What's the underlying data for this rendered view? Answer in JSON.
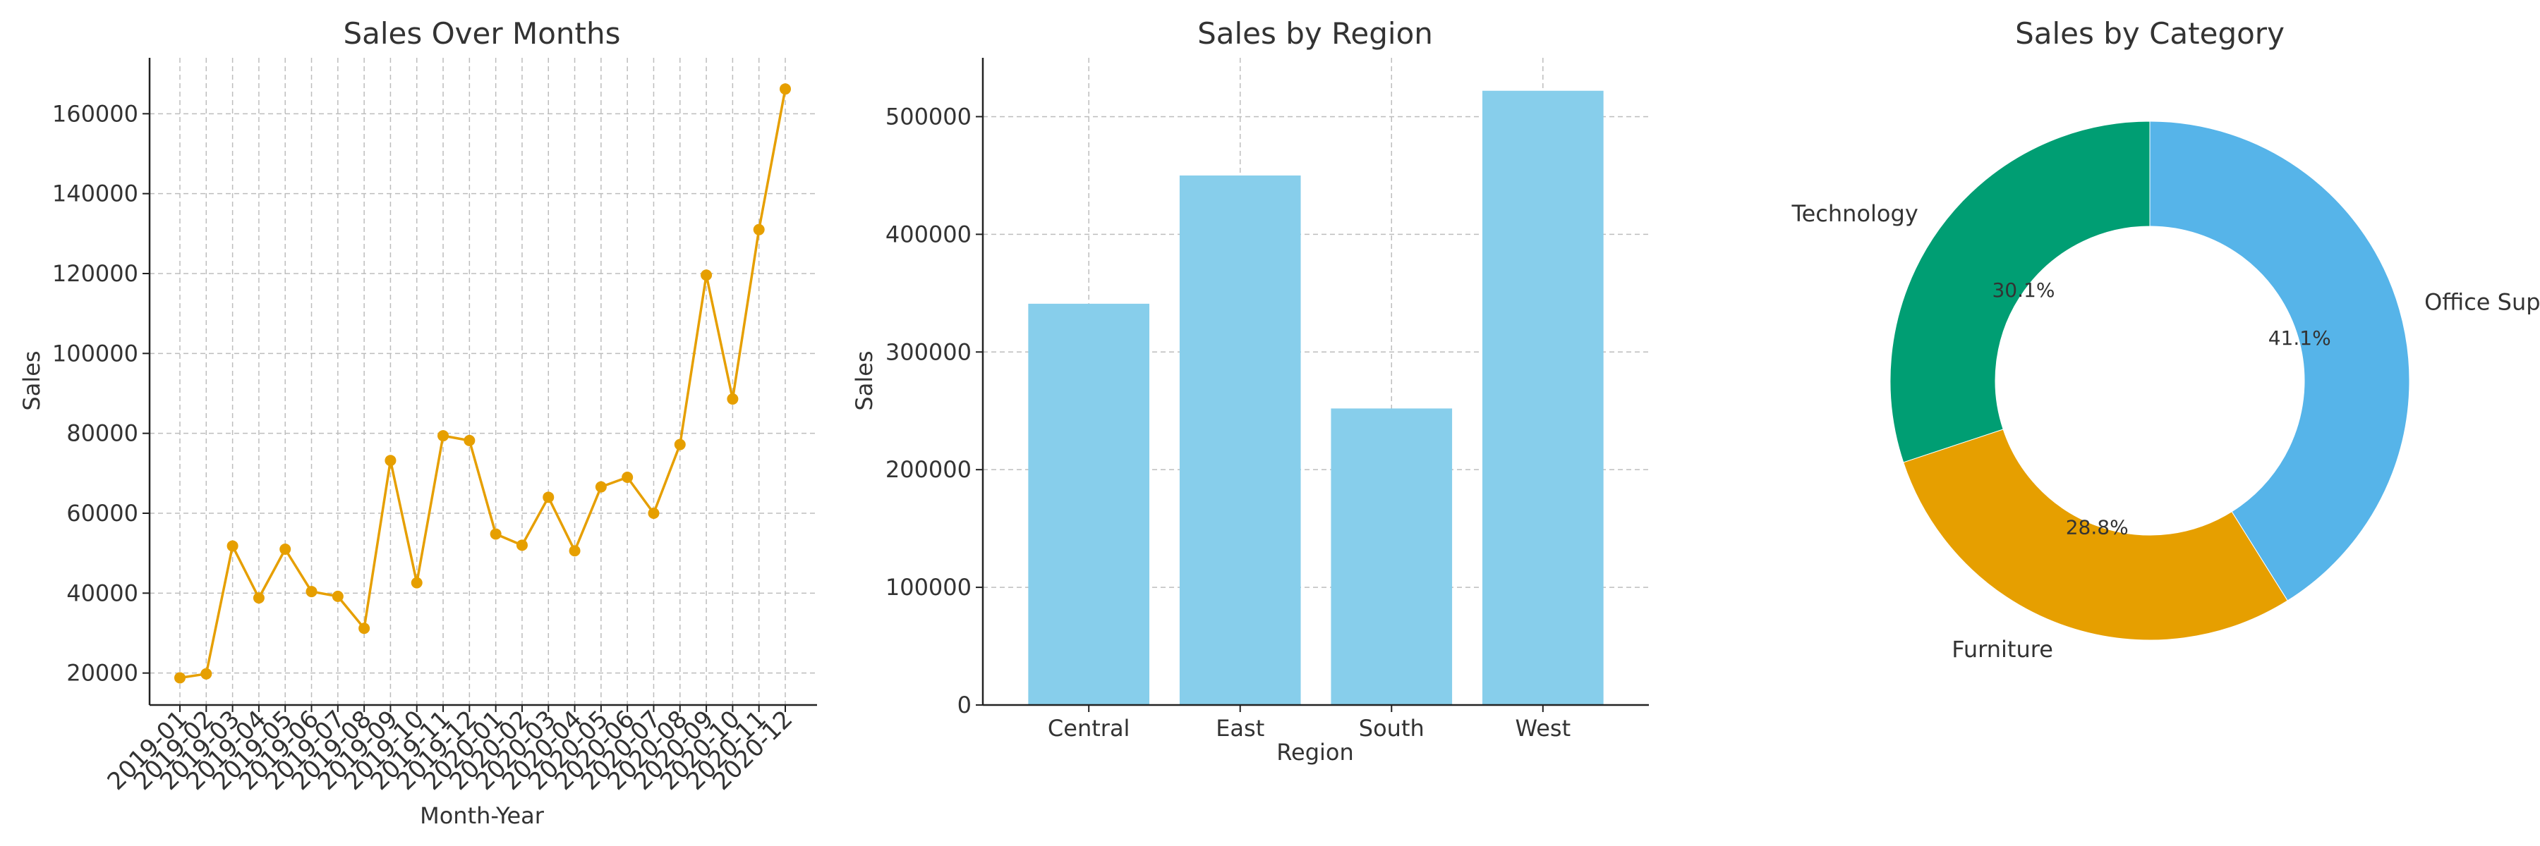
{
  "chart_data": [
    {
      "type": "line",
      "title": "Sales Over Months",
      "xlabel": "Month-Year",
      "ylabel": "Sales",
      "color": "#E69F00",
      "grid": true,
      "ylim": [
        12000,
        174000
      ],
      "yticks": [
        20000,
        40000,
        60000,
        80000,
        100000,
        120000,
        140000,
        160000
      ],
      "x": [
        "2019-01",
        "2019-02",
        "2019-03",
        "2019-04",
        "2019-05",
        "2019-06",
        "2019-07",
        "2019-08",
        "2019-09",
        "2019-10",
        "2019-11",
        "2019-12",
        "2020-01",
        "2020-02",
        "2020-03",
        "2020-04",
        "2020-05",
        "2020-06",
        "2020-07",
        "2020-08",
        "2020-09",
        "2020-10",
        "2020-11",
        "2020-12"
      ],
      "y": [
        18800,
        19800,
        51800,
        38800,
        51000,
        40400,
        39200,
        31200,
        73200,
        42600,
        79400,
        78200,
        54800,
        52000,
        64000,
        50600,
        66600,
        69000,
        60000,
        77200,
        119600,
        88600,
        131000,
        166200
      ]
    },
    {
      "type": "bar",
      "title": "Sales by Region",
      "xlabel": "Region",
      "ylabel": "Sales",
      "color": "#87CEEB",
      "grid": true,
      "ylim": [
        0,
        550000
      ],
      "yticks": [
        0,
        100000,
        200000,
        300000,
        400000,
        500000
      ],
      "categories": [
        "Central",
        "East",
        "South",
        "West"
      ],
      "values": [
        341000,
        450000,
        252000,
        522000
      ]
    },
    {
      "type": "pie",
      "title": "Sales by Category",
      "donut": true,
      "labels": [
        "Technology",
        "Furniture",
        "Office Supplies"
      ],
      "values": [
        30.1,
        28.8,
        41.1
      ],
      "percent_labels": [
        "30.1%",
        "28.8%",
        "41.1%"
      ],
      "colors": [
        "#009E73",
        "#E69F00",
        "#56B4E9"
      ]
    }
  ]
}
